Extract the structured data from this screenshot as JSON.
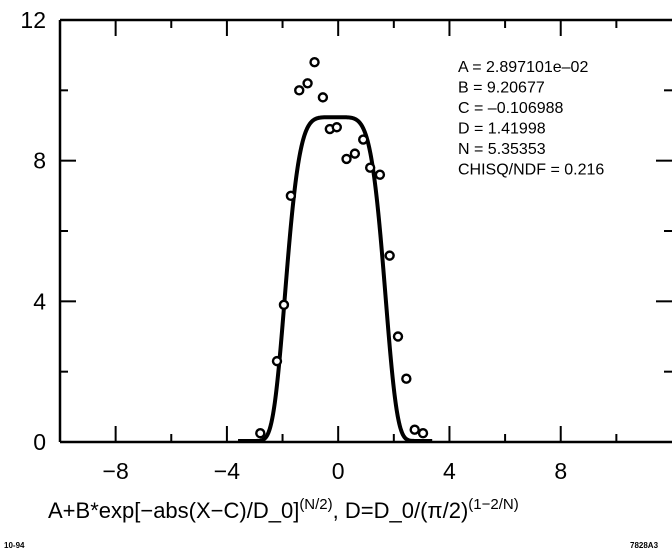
{
  "chart_data": {
    "type": "scatter",
    "xlim": [
      -10,
      12
    ],
    "ylim": [
      0,
      12
    ],
    "xticks": [
      -8,
      -4,
      0,
      4,
      8
    ],
    "xtick_labels": [
      "−8",
      "−4",
      "0",
      "4",
      "8"
    ],
    "yticks": [
      0,
      4,
      8,
      12
    ],
    "ytick_labels": [
      "0",
      "4",
      "8",
      "12"
    ],
    "xminor": [
      -10,
      -6,
      -2,
      2,
      6,
      10
    ],
    "yminor": [
      2,
      6,
      10
    ],
    "grid": false,
    "points": [
      [
        -2.8,
        0.25
      ],
      [
        -2.2,
        2.3
      ],
      [
        -1.95,
        3.9
      ],
      [
        -1.7,
        7.0
      ],
      [
        -1.4,
        10.0
      ],
      [
        -1.1,
        10.2
      ],
      [
        -0.85,
        10.8
      ],
      [
        -0.55,
        9.8
      ],
      [
        -0.3,
        8.9
      ],
      [
        -0.05,
        8.95
      ],
      [
        0.3,
        8.05
      ],
      [
        0.6,
        8.2
      ],
      [
        0.9,
        8.6
      ],
      [
        1.15,
        7.8
      ],
      [
        1.5,
        7.6
      ],
      [
        1.85,
        5.3
      ],
      [
        2.15,
        3.0
      ],
      [
        2.45,
        1.8
      ],
      [
        2.75,
        0.35
      ],
      [
        3.05,
        0.25
      ]
    ],
    "fit_params": {
      "A": 0.02897101,
      "B": 9.20677,
      "C": -0.106988,
      "D": 1.41998,
      "N": 5.35353
    },
    "legend_lines": [
      "A = 2.897101e–02",
      "B = 9.20677",
      "C = –0.106988",
      "D = 1.41998",
      "N = 5.35353",
      "CHISQ/NDF = 0.216"
    ],
    "xlabel": {
      "p1": "A+B*exp[−abs(X−C)/D_0]",
      "sup1": "(N/2)",
      "p2": ", D=D_0/(π/2)",
      "sup2": "(1−2/N)"
    }
  },
  "corner_left": "10-94",
  "corner_right": "7828A3"
}
